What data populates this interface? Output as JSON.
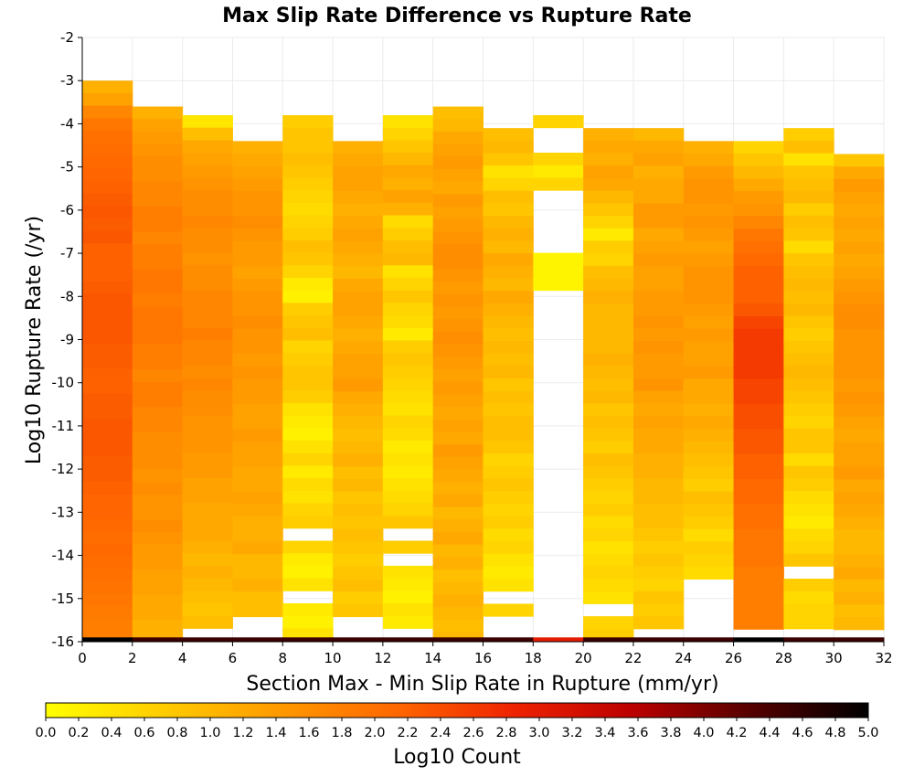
{
  "chart_data": {
    "type": "heatmap",
    "title": "Max Slip Rate Difference vs Rupture Rate",
    "xlabel": "Section Max - Min Slip Rate in Rupture (mm/yr)",
    "ylabel": "Log10 Rupture Rate (/yr)",
    "colorbar_label": "Log10 Count",
    "xlim": [
      0,
      32
    ],
    "ylim": [
      -16,
      -2
    ],
    "x_ticks": [
      "0",
      "2",
      "4",
      "6",
      "8",
      "10",
      "12",
      "14",
      "16",
      "18",
      "20",
      "22",
      "24",
      "26",
      "28",
      "30",
      "32"
    ],
    "y_ticks": [
      "-2",
      "-3",
      "-4",
      "-5",
      "-6",
      "-7",
      "-8",
      "-9",
      "-10",
      "-11",
      "-12",
      "-13",
      "-14",
      "-15",
      "-16"
    ],
    "colorbar_range": [
      0,
      5
    ],
    "colorbar_ticks": [
      "0.0",
      "0.2",
      "0.4",
      "0.6",
      "0.8",
      "1.0",
      "1.2",
      "1.4",
      "1.6",
      "1.8",
      "2.0",
      "2.2",
      "2.4",
      "2.6",
      "2.8",
      "3.0",
      "3.2",
      "3.4",
      "3.6",
      "3.8",
      "4.0",
      "4.2",
      "4.4",
      "4.6",
      "4.8",
      "5.0"
    ],
    "colormap": [
      "#ffff00",
      "#ffcc00",
      "#ff9900",
      "#ff6600",
      "#ee2200",
      "#bb0000",
      "#550000",
      "#000000"
    ],
    "bin_width": 2,
    "y_bin_height": 0.29,
    "columns": [
      {
        "x0": 0,
        "top": -3.0,
        "values": [
          1.1,
          1.3,
          1.7,
          1.9,
          2.0,
          2.05,
          2.1,
          2.15,
          2.2,
          2.25,
          2.3,
          2.25,
          2.3,
          2.2,
          2.2,
          2.2,
          2.25,
          2.3,
          2.3,
          2.3,
          2.3,
          2.25,
          2.25,
          2.2,
          2.2,
          2.25,
          2.25,
          2.3,
          2.3,
          2.3,
          2.25,
          2.25,
          2.2,
          2.15,
          2.15,
          2.1,
          2.05,
          2.1,
          2.05,
          2.0,
          1.95,
          1.9,
          1.85,
          1.8,
          1.8,
          1.8
        ]
      },
      {
        "x0": 2,
        "top": -3.6,
        "values": [
          1.1,
          1.3,
          1.4,
          1.5,
          1.6,
          1.6,
          1.7,
          1.7,
          1.8,
          1.8,
          1.7,
          1.8,
          1.8,
          1.9,
          1.9,
          1.8,
          1.9,
          1.9,
          1.9,
          1.8,
          1.8,
          1.7,
          1.8,
          1.8,
          1.7,
          1.7,
          1.6,
          1.6,
          1.6,
          1.5,
          1.6,
          1.5,
          1.5,
          1.6,
          1.5,
          1.4,
          1.4,
          1.3,
          1.3,
          1.2,
          1.2,
          1.1,
          1.1
        ]
      },
      {
        "x0": 4,
        "top": -3.8,
        "values": [
          0.35,
          0.9,
          1.2,
          1.3,
          1.4,
          1.5,
          1.6,
          1.6,
          1.7,
          1.6,
          1.6,
          1.5,
          1.6,
          1.6,
          1.7,
          1.7,
          1.7,
          1.8,
          1.7,
          1.7,
          1.6,
          1.7,
          1.6,
          1.6,
          1.5,
          1.5,
          1.5,
          1.4,
          1.4,
          1.3,
          1.3,
          1.2,
          1.2,
          1.2,
          1.1,
          1.0,
          1.1,
          1.0,
          0.9,
          0.8,
          0.9
        ]
      },
      {
        "x0": 6,
        "top": -4.4,
        "values": [
          1.1,
          1.2,
          1.3,
          1.4,
          1.5,
          1.5,
          1.6,
          1.5,
          1.4,
          1.4,
          1.3,
          1.4,
          1.5,
          1.5,
          1.6,
          1.5,
          1.5,
          1.4,
          1.5,
          1.4,
          1.4,
          1.3,
          1.3,
          1.4,
          1.3,
          1.3,
          1.2,
          1.2,
          1.3,
          1.2,
          1.1,
          1.1,
          1.2,
          1.0,
          1.0,
          1.1,
          0.9,
          0.9
        ]
      },
      {
        "x0": 8,
        "top": -3.8,
        "values": [
          0.7,
          0.8,
          0.8,
          0.9,
          0.8,
          0.7,
          0.6,
          0.5,
          0.6,
          0.7,
          0.9,
          0.8,
          0.6,
          0.3,
          0.2,
          0.7,
          0.8,
          0.9,
          0.6,
          0.7,
          0.8,
          0.8,
          0.7,
          0.4,
          0.3,
          0.2,
          0.4,
          0.6,
          0.3,
          0.5,
          0.4,
          0.6,
          0.7,
          null,
          0.6,
          0.3,
          0.2,
          0.4,
          null,
          0.3,
          0.2,
          0.4
        ]
      },
      {
        "x0": 10,
        "top": -4.4,
        "values": [
          1.1,
          1.2,
          1.3,
          1.3,
          1.2,
          1.1,
          1.2,
          1.3,
          1.2,
          1.1,
          1.0,
          1.2,
          1.3,
          1.3,
          1.2,
          1.1,
          1.2,
          1.3,
          1.3,
          1.4,
          1.2,
          1.1,
          1.0,
          0.9,
          1.0,
          1.1,
          0.9,
          1.0,
          0.8,
          0.9,
          0.8,
          0.9,
          0.8,
          0.7,
          0.8,
          0.9,
          0.7,
          0.8
        ]
      },
      {
        "x0": 12,
        "top": -3.8,
        "values": [
          0.4,
          0.6,
          0.8,
          1.0,
          1.2,
          1.1,
          1.3,
          1.1,
          0.5,
          0.7,
          0.9,
          1.0,
          0.4,
          0.6,
          0.8,
          0.6,
          0.5,
          0.3,
          0.7,
          0.8,
          0.7,
          0.6,
          0.5,
          0.4,
          0.6,
          0.5,
          0.3,
          0.4,
          0.3,
          0.4,
          0.5,
          0.6,
          0.8,
          null,
          0.7,
          null,
          0.4,
          0.3,
          0.2,
          0.4,
          0.3
        ]
      },
      {
        "x0": 14,
        "top": -3.6,
        "values": [
          0.9,
          1.0,
          1.2,
          1.3,
          1.4,
          1.3,
          1.2,
          1.4,
          1.3,
          1.4,
          1.5,
          1.6,
          1.6,
          1.5,
          1.4,
          1.5,
          1.4,
          1.5,
          1.6,
          1.5,
          1.4,
          1.3,
          1.4,
          1.3,
          1.2,
          1.3,
          1.2,
          1.4,
          1.3,
          1.2,
          1.1,
          1.2,
          1.0,
          1.1,
          1.2,
          1.0,
          1.1,
          0.9,
          1.0,
          1.1,
          1.0,
          0.9,
          1.0
        ]
      },
      {
        "x0": 16,
        "top": -4.1,
        "values": [
          0.9,
          1.0,
          0.8,
          0.4,
          0.6,
          0.9,
          0.8,
          1.0,
          1.1,
          1.0,
          1.2,
          1.1,
          1.0,
          1.2,
          1.1,
          1.0,
          0.9,
          1.0,
          0.9,
          1.0,
          0.8,
          0.9,
          0.8,
          0.9,
          0.9,
          0.8,
          0.6,
          0.7,
          0.8,
          0.7,
          0.6,
          0.7,
          0.5,
          0.6,
          0.4,
          0.3,
          0.4,
          null,
          0.6
        ]
      },
      {
        "x0": 18,
        "top": -3.8,
        "values": [
          0.6,
          null,
          null,
          0.6,
          0.3,
          0.6,
          null,
          null,
          null,
          null,
          null,
          0.15,
          0.15,
          0.15,
          null,
          null,
          null,
          null,
          null,
          null,
          null,
          null,
          null,
          null,
          null,
          null,
          null,
          null,
          null,
          null,
          null,
          null,
          null,
          null,
          null,
          null,
          null,
          null,
          null,
          null,
          null,
          null,
          null,
          null
        ]
      },
      {
        "x0": 20,
        "top": -4.1,
        "values": [
          1.1,
          1.2,
          1.1,
          1.3,
          1.2,
          1.0,
          0.8,
          0.6,
          0.3,
          0.7,
          0.6,
          0.9,
          1.0,
          1.1,
          1.0,
          1.0,
          1.0,
          1.0,
          1.1,
          1.0,
          0.9,
          1.0,
          0.8,
          0.9,
          0.8,
          0.7,
          0.9,
          0.8,
          0.7,
          0.6,
          0.7,
          0.5,
          0.6,
          0.4,
          0.5,
          0.6,
          0.5,
          0.4,
          null,
          0.6,
          0.7
        ]
      },
      {
        "x0": 22,
        "top": -4.1,
        "values": [
          1.0,
          1.2,
          1.3,
          1.1,
          1.2,
          1.2,
          1.4,
          1.4,
          1.2,
          1.3,
          1.4,
          1.3,
          1.3,
          1.4,
          1.4,
          1.5,
          1.4,
          1.5,
          1.4,
          1.4,
          1.5,
          1.3,
          1.2,
          1.3,
          1.2,
          1.2,
          1.1,
          1.1,
          1.0,
          1.0,
          0.9,
          0.9,
          0.8,
          0.7,
          0.8,
          0.7,
          0.6,
          0.8,
          0.7,
          0.8
        ]
      },
      {
        "x0": 24,
        "top": -4.4,
        "values": [
          1.1,
          1.2,
          1.4,
          1.5,
          1.5,
          1.4,
          1.5,
          1.4,
          1.3,
          1.4,
          1.5,
          1.5,
          1.5,
          1.4,
          1.3,
          1.4,
          1.3,
          1.3,
          1.4,
          1.2,
          1.2,
          1.1,
          1.2,
          1.1,
          1.0,
          0.9,
          0.8,
          0.7,
          0.9,
          0.8,
          0.7,
          0.5,
          0.7,
          0.6,
          0.5
        ]
      },
      {
        "x0": 26,
        "top": -4.4,
        "values": [
          0.6,
          0.8,
          1.0,
          1.2,
          1.4,
          1.5,
          1.7,
          1.9,
          2.0,
          2.1,
          2.2,
          2.2,
          2.2,
          2.3,
          2.5,
          2.6,
          2.6,
          2.6,
          2.6,
          2.5,
          2.5,
          2.4,
          2.4,
          2.3,
          2.3,
          2.2,
          2.2,
          2.1,
          2.1,
          2.0,
          2.0,
          1.9,
          1.9,
          1.9,
          1.8,
          1.8,
          1.8,
          1.8,
          1.8
        ]
      },
      {
        "x0": 28,
        "top": -4.1,
        "values": [
          0.7,
          0.9,
          0.4,
          0.8,
          0.9,
          1.0,
          0.7,
          0.9,
          0.8,
          0.5,
          0.8,
          0.9,
          1.0,
          0.9,
          1.0,
          0.8,
          0.7,
          0.8,
          0.9,
          1.0,
          0.9,
          0.8,
          0.7,
          0.6,
          0.8,
          0.8,
          0.5,
          0.8,
          0.7,
          0.5,
          0.4,
          0.3,
          0.5,
          0.6,
          0.8,
          null,
          0.7,
          0.5,
          0.6,
          0.6
        ]
      },
      {
        "x0": 30,
        "top": -4.7,
        "values": [
          0.8,
          1.2,
          1.4,
          1.3,
          1.2,
          1.3,
          1.2,
          1.3,
          1.2,
          1.3,
          1.4,
          1.5,
          1.6,
          1.6,
          1.5,
          1.5,
          1.5,
          1.5,
          1.4,
          1.5,
          1.4,
          1.3,
          1.2,
          1.3,
          1.3,
          1.4,
          1.2,
          1.3,
          1.2,
          1.1,
          1.0,
          1.0,
          1.1,
          1.2,
          1.0,
          1.1,
          0.9,
          1.0
        ]
      }
    ],
    "bottom_row": {
      "y": -16,
      "values": [
        5.0,
        4.5,
        4.5,
        4.5,
        4.5,
        4.5,
        4.5,
        4.5,
        4.5,
        3.0,
        4.5,
        4.5,
        4.5,
        5.0,
        4.5,
        4.5
      ]
    }
  }
}
